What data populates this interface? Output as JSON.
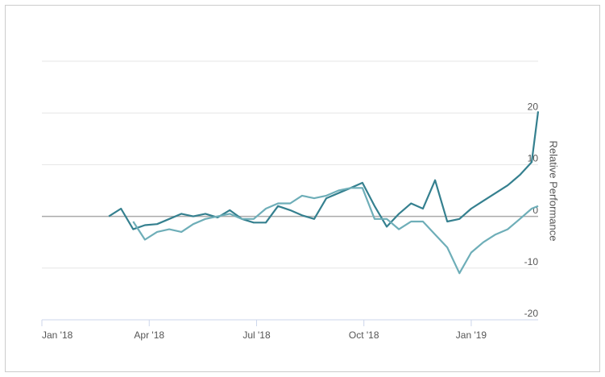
{
  "chart_data": {
    "type": "line",
    "y_axis_label": "Relative Performance",
    "x": [
      1.87,
      2.21,
      2.55,
      2.88,
      3.22,
      3.56,
      3.9,
      4.23,
      4.57,
      4.91,
      5.25,
      5.59,
      5.92,
      6.26,
      6.6,
      6.94,
      7.27,
      7.61,
      7.95,
      8.29,
      8.63,
      8.96,
      9.3,
      9.64,
      9.98,
      10.32,
      10.65,
      10.99,
      11.33,
      11.67,
      12.0,
      12.34,
      12.68,
      13.02,
      13.36,
      13.69,
      13.87
    ],
    "series": [
      {
        "color": "#35808f",
        "values": [
          0,
          1.5,
          -2.5,
          -1.7,
          -1.5,
          -0.5,
          0.5,
          0,
          0.5,
          -0.2,
          1.2,
          -0.5,
          -1.2,
          -1.2,
          2.0,
          1.2,
          0.2,
          -0.5,
          3.5,
          4.5,
          5.5,
          6.5,
          2.0,
          -2,
          0.5,
          2.5,
          1.5,
          7,
          -1,
          -0.5,
          1.5,
          3.0,
          4.5,
          6.0,
          8.0,
          10.5,
          20.3
        ]
      },
      {
        "color": "#6eaeb8",
        "values": [
          null,
          null,
          -1,
          -4.5,
          -3,
          -2.5,
          -3,
          -1.5,
          -0.5,
          0,
          0.5,
          -0.5,
          -0.5,
          1.5,
          2.5,
          2.5,
          4,
          3.5,
          4.0,
          5.0,
          5.5,
          5.5,
          -0.5,
          -0.5,
          -2.5,
          -1,
          -1,
          -3.5,
          -6,
          -11,
          -7,
          -5,
          -3.5,
          -2.5,
          -0.5,
          1.5,
          2.0
        ]
      }
    ],
    "xlim": [
      0,
      13.87
    ],
    "xticks": [
      {
        "value": 0,
        "label": "Jan '18"
      },
      {
        "value": 3,
        "label": "Apr '18"
      },
      {
        "value": 6,
        "label": "Jul '18"
      },
      {
        "value": 9,
        "label": "Oct '18"
      },
      {
        "value": 12,
        "label": "Jan '19"
      }
    ],
    "ylim": [
      -20,
      30
    ],
    "yticks": [
      -20,
      -10,
      0,
      10,
      20
    ],
    "grid": true
  }
}
